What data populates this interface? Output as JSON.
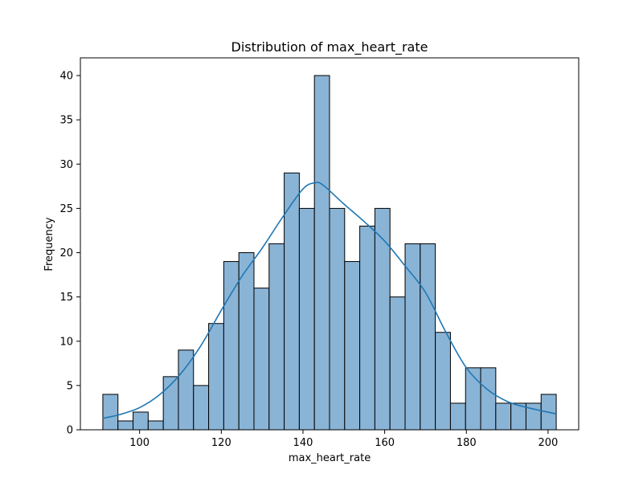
{
  "chart_data": {
    "type": "bar",
    "title": "Distribution of max_heart_rate",
    "xlabel": "max_heart_rate",
    "ylabel": "Frequency",
    "xlim": [
      85.5,
      207.5
    ],
    "ylim": [
      0,
      42
    ],
    "xticks": [
      100,
      120,
      140,
      160,
      180,
      200
    ],
    "yticks": [
      0,
      5,
      10,
      15,
      20,
      25,
      30,
      35,
      40
    ],
    "bin_edges": [
      91,
      94.7,
      98.4,
      102.1,
      105.8,
      109.5,
      113.2,
      116.9,
      120.6,
      124.3,
      128,
      131.7,
      135.4,
      139.1,
      142.8,
      146.5,
      150.2,
      153.9,
      157.6,
      161.3,
      165,
      168.7,
      172.4,
      176.1,
      179.8,
      183.5,
      187.2,
      190.9,
      194.6,
      198.3,
      202
    ],
    "counts": [
      4,
      1,
      2,
      1,
      6,
      9,
      5,
      12,
      19,
      20,
      16,
      21,
      29,
      25,
      40,
      25,
      19,
      23,
      25,
      15,
      21,
      21,
      11,
      3,
      7,
      7,
      3,
      3,
      3,
      4
    ],
    "kde": {
      "x": [
        91,
        95,
        100,
        105,
        110,
        115,
        120,
        125,
        130,
        135,
        140,
        143,
        145,
        150,
        155,
        160,
        165,
        170,
        175,
        180,
        185,
        190,
        195,
        202
      ],
      "y": [
        1.3,
        1.7,
        2.5,
        4.0,
        6.3,
        9.5,
        13.5,
        17.3,
        20.5,
        24.0,
        27.2,
        27.9,
        27.6,
        25.5,
        23.5,
        21.3,
        18.5,
        15.5,
        11.0,
        7.0,
        4.6,
        3.2,
        2.5,
        1.8
      ]
    },
    "grid": false,
    "colors": {
      "bar_fill": "#8ab4d6",
      "bar_edge": "#000000",
      "kde_line": "#1f77b4"
    }
  }
}
